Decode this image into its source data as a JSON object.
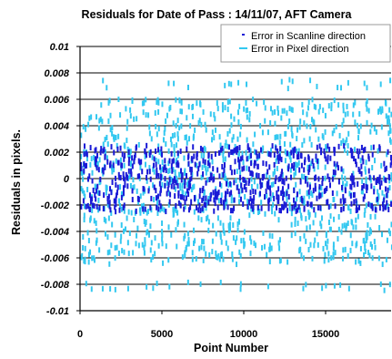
{
  "chart_data": {
    "type": "scatter",
    "title": "Residuals for Date of Pass : 14/11/07, AFT Camera",
    "xlabel": "Point Number",
    "ylabel": "Residuals in pixels.",
    "xlim": [
      0,
      19000
    ],
    "ylim": [
      -0.01,
      0.01
    ],
    "x_ticks": [
      0,
      5000,
      10000,
      15000
    ],
    "x_tick_labels": [
      "0",
      "5000",
      "10000",
      "15000"
    ],
    "y_ticks": [
      0.01,
      0.008,
      0.006,
      0.004,
      0.002,
      0,
      -0.002,
      -0.004,
      -0.006,
      -0.008,
      -0.01
    ],
    "y_tick_labels": [
      "0.01",
      "0.008",
      "0.006",
      "0.004",
      "0.002",
      "0",
      "-0.002",
      "-0.004",
      "-0.006",
      "-0.008",
      "-0.01"
    ],
    "grid": "horizontal",
    "legend_position": "top-right",
    "series": [
      {
        "name": "Error in Scanline direction",
        "color": "#1a1ad6",
        "point_count": 19000,
        "range": [
          -0.0025,
          0.0025
        ]
      },
      {
        "name": "Error in Pixel direction",
        "color": "#33c8f0",
        "point_count": 19000,
        "range": [
          -0.0086,
          0.0075
        ]
      }
    ]
  }
}
